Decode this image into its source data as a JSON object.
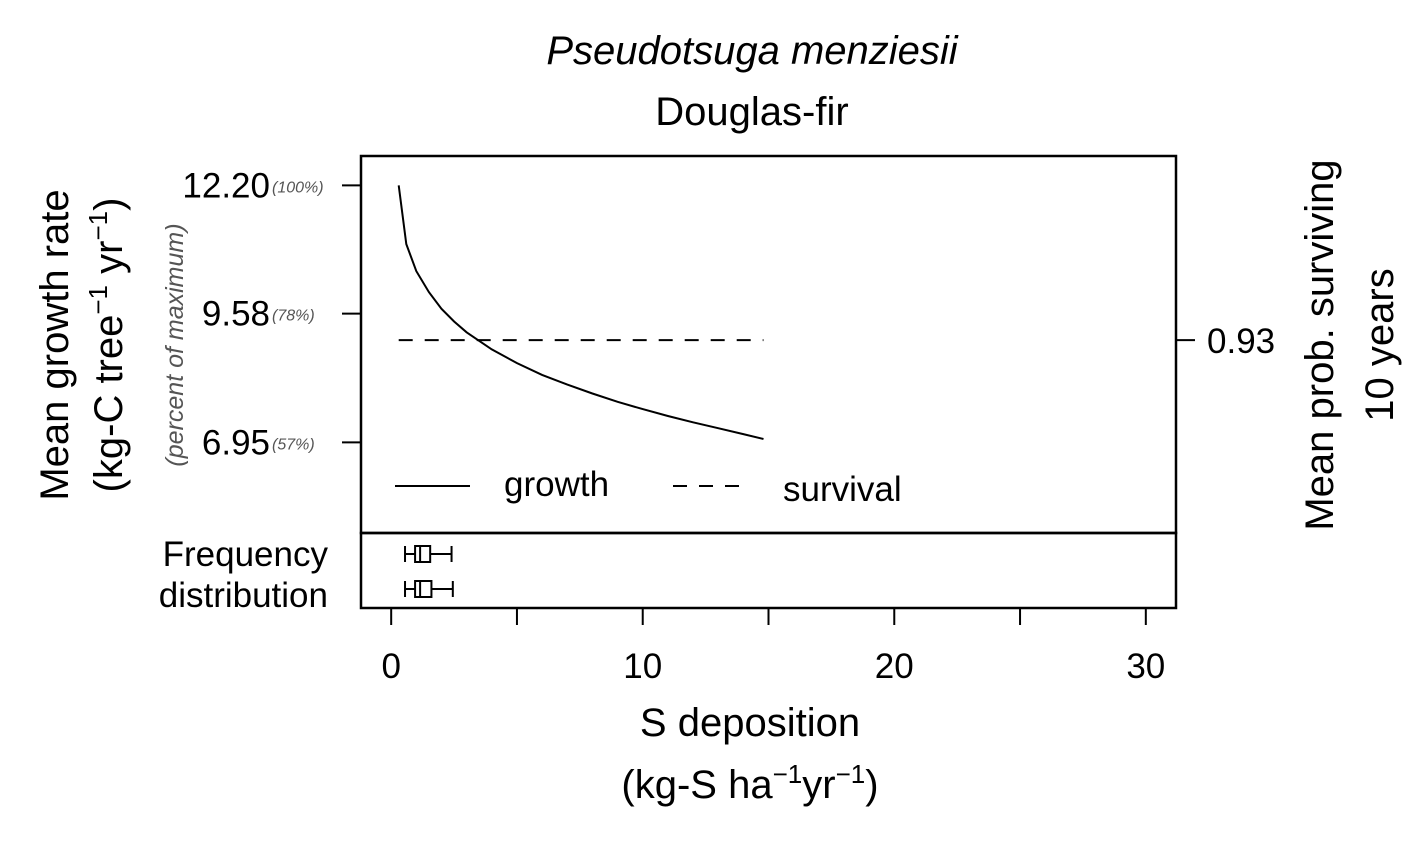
{
  "chart_data": {
    "type": "line",
    "title": "Pseudotsuga menziesii",
    "subtitle": "Douglas-fir",
    "xlabel": {
      "line1": "S deposition",
      "line2": {
        "a": "(kg-S ha",
        "sup1": "−1",
        "b": "yr",
        "sup2": "−1",
        "c": ")"
      }
    },
    "ylabel": {
      "line1": "Mean growth rate",
      "line2": {
        "a": "(kg-C tree",
        "sup1": "−1",
        "b": " yr",
        "sup2": "−1",
        "c": ")"
      }
    },
    "ylabel_secondary": "(percent of maximum)",
    "y2label": {
      "line1": "Mean prob. surviving",
      "line2": "10 years"
    },
    "xlim": [
      -1.2,
      31.2
    ],
    "ylim": [
      5.1,
      12.8
    ],
    "x_ticks": [
      {
        "value": 0,
        "label": "0"
      },
      {
        "value": 5,
        "label": ""
      },
      {
        "value": 10,
        "label": "10"
      },
      {
        "value": 15,
        "label": ""
      },
      {
        "value": 20,
        "label": "20"
      },
      {
        "value": 25,
        "label": ""
      },
      {
        "value": 30,
        "label": "30"
      }
    ],
    "y_ticks": [
      {
        "value": 12.2,
        "label": "12.20",
        "pct": "(100%)"
      },
      {
        "value": 9.58,
        "label": "9.58",
        "pct": "(78%)"
      },
      {
        "value": 6.95,
        "label": "6.95",
        "pct": "(57%)"
      }
    ],
    "y2_ticks": [
      {
        "value": 9.04,
        "label": "0.93"
      }
    ],
    "series": [
      {
        "name": "growth",
        "style": "solid",
        "x": [
          0.3,
          0.6,
          1.0,
          1.5,
          2.0,
          2.5,
          3.0,
          4.0,
          5.0,
          6.0,
          7.0,
          8.0,
          9.0,
          10.0,
          11.0,
          12.0,
          13.0,
          14.0,
          14.8
        ],
        "y": [
          12.2,
          11.0,
          10.45,
          10.02,
          9.68,
          9.42,
          9.2,
          8.85,
          8.57,
          8.33,
          8.13,
          7.95,
          7.78,
          7.63,
          7.49,
          7.36,
          7.24,
          7.12,
          7.02
        ]
      },
      {
        "name": "survival",
        "style": "dashed",
        "x": [
          0.3,
          14.8
        ],
        "y": [
          9.04,
          9.04
        ]
      }
    ],
    "legend": {
      "placement": "bottom-left",
      "entries": [
        "growth",
        "survival"
      ]
    },
    "frequency_distribution": {
      "label_line1": "Frequency",
      "label_line2": "distribution",
      "boxplots": [
        {
          "whisker_low": 0.55,
          "q1": 0.95,
          "median": 1.15,
          "q3": 1.55,
          "whisker_high": 2.4
        },
        {
          "whisker_low": 0.55,
          "q1": 0.95,
          "median": 1.15,
          "q3": 1.6,
          "whisker_high": 2.45
        }
      ]
    },
    "grid": false
  }
}
